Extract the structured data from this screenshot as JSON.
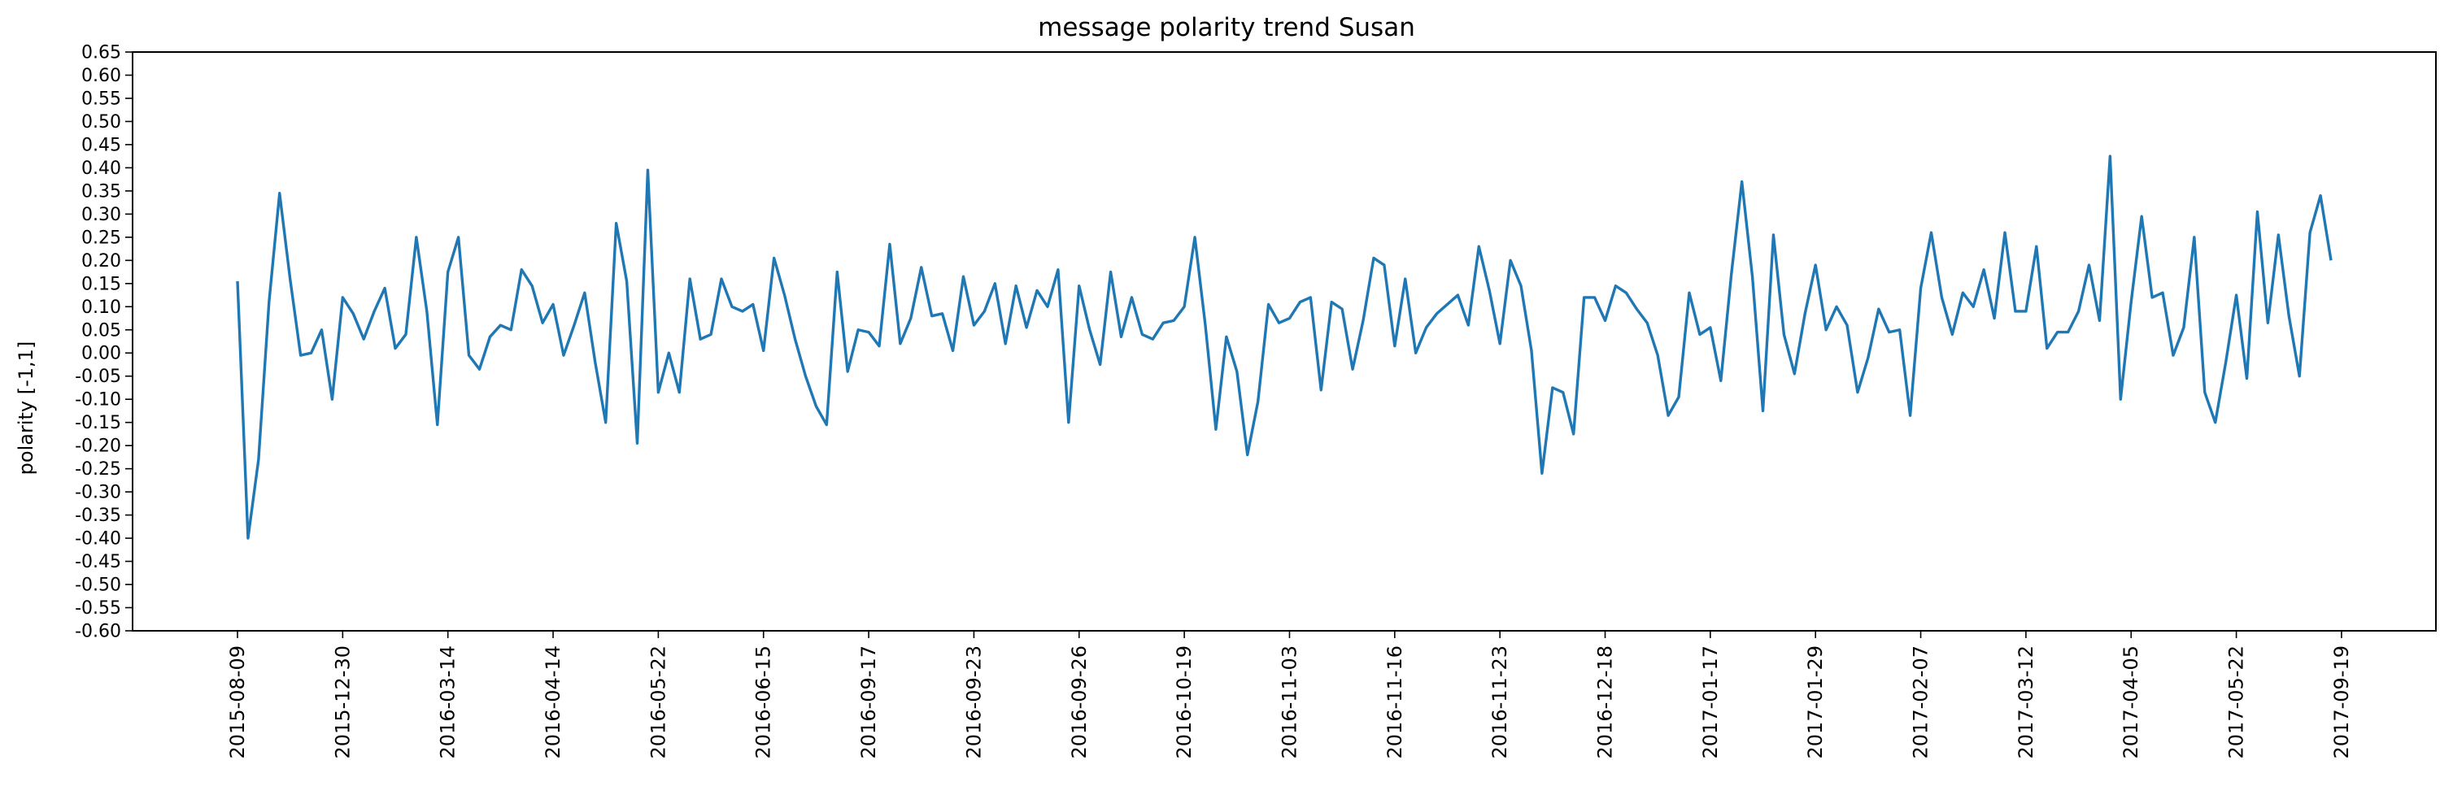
{
  "chart_data": {
    "type": "line",
    "title": "message polarity trend Susan",
    "xlabel": "",
    "ylabel": "polarity [-1,1]",
    "ylim": [
      -0.6,
      0.65
    ],
    "yticks": [
      "0.65",
      "0.60",
      "0.55",
      "0.50",
      "0.45",
      "0.40",
      "0.35",
      "0.30",
      "0.25",
      "0.20",
      "0.15",
      "0.10",
      "0.05",
      "0.00",
      "-0.05",
      "-0.10",
      "-0.15",
      "-0.20",
      "-0.25",
      "-0.30",
      "-0.35",
      "-0.40",
      "-0.45",
      "-0.50",
      "-0.55",
      "-0.60"
    ],
    "x_tick_labels": [
      "2015-08-09",
      "2015-12-30",
      "2016-03-14",
      "2016-04-14",
      "2016-05-22",
      "2016-06-15",
      "2016-09-17",
      "2016-09-23",
      "2016-09-26",
      "2016-10-19",
      "2016-11-03",
      "2016-11-16",
      "2016-11-23",
      "2016-12-18",
      "2017-01-17",
      "2017-01-29",
      "2017-02-07",
      "2017-03-12",
      "2017-04-05",
      "2017-05-22",
      "2017-09-19"
    ],
    "tick_every_n_points": 10,
    "grid": false,
    "series": [
      {
        "color": "#1f77b4",
        "values": [
          0.155,
          -0.4,
          -0.23,
          0.11,
          0.345,
          0.16,
          -0.005,
          0.0,
          0.05,
          -0.1,
          0.12,
          0.085,
          0.03,
          0.09,
          0.14,
          0.01,
          0.04,
          0.25,
          0.09,
          -0.155,
          0.175,
          0.25,
          -0.005,
          -0.035,
          0.035,
          0.06,
          0.05,
          0.18,
          0.145,
          0.065,
          0.105,
          -0.005,
          0.06,
          0.13,
          -0.02,
          -0.15,
          0.28,
          0.155,
          -0.195,
          0.395,
          -0.085,
          -0.0,
          -0.085,
          0.16,
          0.03,
          0.04,
          0.16,
          0.1,
          0.09,
          0.105,
          0.005,
          0.205,
          0.125,
          0.03,
          -0.05,
          -0.115,
          -0.155,
          0.175,
          -0.04,
          0.05,
          0.045,
          0.015,
          0.235,
          0.02,
          0.075,
          0.185,
          0.08,
          0.085,
          0.005,
          0.165,
          0.06,
          0.09,
          0.15,
          0.02,
          0.145,
          0.055,
          0.135,
          0.1,
          0.18,
          -0.15,
          0.145,
          0.05,
          -0.025,
          0.175,
          0.035,
          0.12,
          0.04,
          0.03,
          0.065,
          0.07,
          0.1,
          0.25,
          0.06,
          -0.165,
          0.035,
          -0.04,
          -0.22,
          -0.105,
          0.105,
          0.065,
          0.075,
          0.11,
          0.12,
          -0.08,
          0.11,
          0.095,
          -0.035,
          0.07,
          0.205,
          0.19,
          0.015,
          0.16,
          0.0,
          0.055,
          0.085,
          0.105,
          0.125,
          0.06,
          0.23,
          0.135,
          0.02,
          0.2,
          0.145,
          0.005,
          -0.26,
          -0.075,
          -0.085,
          -0.175,
          0.12,
          0.12,
          0.07,
          0.145,
          0.13,
          0.095,
          0.065,
          -0.005,
          -0.135,
          -0.095,
          0.13,
          0.04,
          0.055,
          -0.06,
          0.17,
          0.37,
          0.165,
          -0.125,
          0.255,
          0.04,
          -0.045,
          0.085,
          0.19,
          0.05,
          0.1,
          0.06,
          -0.085,
          -0.01,
          0.095,
          0.045,
          0.05,
          -0.135,
          0.14,
          0.26,
          0.12,
          0.04,
          0.13,
          0.1,
          0.18,
          0.075,
          0.26,
          0.09,
          0.09,
          0.23,
          0.01,
          0.045,
          0.045,
          0.09,
          0.19,
          0.07,
          0.425,
          -0.1,
          0.11,
          0.295,
          0.12,
          0.13,
          -0.005,
          0.055,
          0.25,
          -0.085,
          -0.15,
          -0.02,
          0.125,
          -0.055,
          0.305,
          0.065,
          0.255,
          0.08,
          -0.05,
          0.26,
          0.34,
          0.2
        ]
      }
    ]
  }
}
